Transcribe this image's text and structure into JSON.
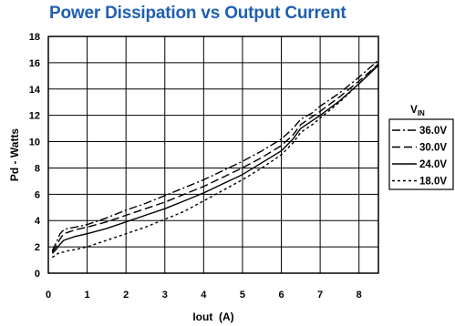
{
  "chart_data": {
    "type": "line",
    "title": "Power Dissipation vs Output Current",
    "xlabel": "Iout  (A)",
    "ylabel": "Pd - Watts",
    "xlim": [
      0,
      8.5
    ],
    "ylim": [
      0,
      18
    ],
    "xticks": [
      "0",
      "1",
      "2",
      "3",
      "4",
      "5",
      "6",
      "7",
      "8"
    ],
    "yticks": [
      "0",
      "2",
      "4",
      "6",
      "8",
      "10",
      "12",
      "14",
      "16",
      "18"
    ],
    "grid": true,
    "legend_title": "V",
    "legend_title_sub": "IN",
    "legend_position": "right",
    "series": [
      {
        "name": "36.0V",
        "style": "dashdot",
        "x": [
          0.1,
          0.2,
          0.3,
          0.4,
          0.5,
          0.7,
          1.0,
          1.5,
          2.0,
          2.5,
          3.0,
          3.5,
          4.0,
          4.5,
          5.0,
          5.5,
          6.0,
          6.3,
          6.5,
          6.8,
          7.0,
          7.5,
          8.0,
          8.5
        ],
        "y": [
          1.7,
          2.3,
          3.0,
          3.3,
          3.4,
          3.5,
          3.7,
          4.2,
          4.8,
          5.3,
          5.9,
          6.5,
          7.1,
          7.8,
          8.5,
          9.3,
          10.2,
          11.0,
          11.7,
          12.2,
          12.7,
          13.7,
          14.9,
          16.2
        ]
      },
      {
        "name": "30.0V",
        "style": "dashed",
        "x": [
          0.1,
          0.2,
          0.3,
          0.4,
          0.5,
          0.7,
          1.0,
          1.5,
          2.0,
          2.5,
          3.0,
          3.5,
          4.0,
          4.5,
          5.0,
          5.5,
          6.0,
          6.3,
          6.5,
          6.8,
          7.0,
          7.5,
          8.0,
          8.5
        ],
        "y": [
          1.6,
          2.0,
          2.6,
          3.0,
          3.1,
          3.3,
          3.5,
          3.9,
          4.4,
          4.9,
          5.4,
          6.0,
          6.6,
          7.3,
          8.0,
          8.8,
          9.7,
          10.5,
          11.3,
          11.9,
          12.3,
          13.4,
          14.6,
          15.9
        ]
      },
      {
        "name": "24.0V",
        "style": "solid",
        "x": [
          0.1,
          0.2,
          0.3,
          0.4,
          0.5,
          0.7,
          1.0,
          1.5,
          2.0,
          2.5,
          3.0,
          3.5,
          4.0,
          4.5,
          5.0,
          5.5,
          6.0,
          6.3,
          6.5,
          6.8,
          7.0,
          7.5,
          8.0,
          8.5
        ],
        "y": [
          1.5,
          1.8,
          2.2,
          2.5,
          2.6,
          2.8,
          3.0,
          3.4,
          3.9,
          4.4,
          4.9,
          5.5,
          6.1,
          6.8,
          7.5,
          8.4,
          9.3,
          10.2,
          11.0,
          11.6,
          12.0,
          13.1,
          14.4,
          15.8
        ]
      },
      {
        "name": "18.0V",
        "style": "dotted",
        "x": [
          0.1,
          0.2,
          0.3,
          0.4,
          0.5,
          0.7,
          1.0,
          1.5,
          2.0,
          2.5,
          3.0,
          3.5,
          4.0,
          4.5,
          5.0,
          5.5,
          6.0,
          6.3,
          6.5,
          6.8,
          7.0,
          7.5,
          8.0,
          8.5
        ],
        "y": [
          1.2,
          1.4,
          1.6,
          1.6,
          1.7,
          1.8,
          2.0,
          2.5,
          3.0,
          3.5,
          4.1,
          4.7,
          5.5,
          6.3,
          7.1,
          8.0,
          9.0,
          9.9,
          10.7,
          11.3,
          11.8,
          13.0,
          14.4,
          15.9
        ]
      }
    ]
  }
}
